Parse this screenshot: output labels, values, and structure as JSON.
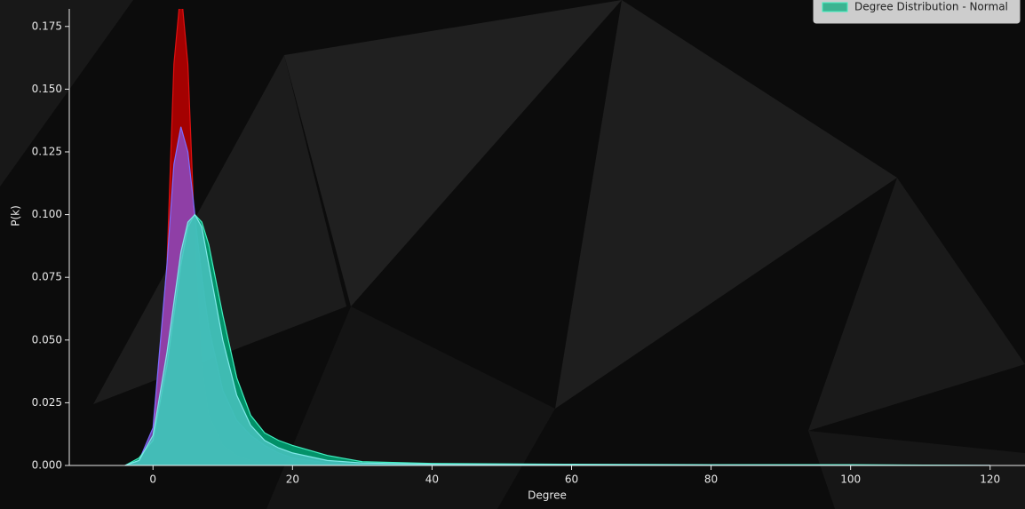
{
  "chart_data": {
    "type": "area",
    "x_label": "Degree",
    "y_label": "P(k)",
    "x": [
      -4,
      -2,
      0,
      2,
      3,
      4,
      5,
      6,
      7,
      8,
      10,
      12,
      14,
      16,
      18,
      20,
      25,
      30,
      40,
      60,
      80,
      100,
      120
    ],
    "series": [
      {
        "color": "#c00000",
        "values": [
          0,
          0.001,
          0.01,
          0.08,
          0.16,
          0.19,
          0.16,
          0.09,
          0.04,
          0.02,
          0.008,
          0.004,
          0.002,
          0.001,
          0.0005,
          0.0003,
          0.0001,
          0,
          0,
          0,
          0,
          0,
          0
        ]
      },
      {
        "color": "#8a4fd0",
        "values": [
          0,
          0.002,
          0.015,
          0.08,
          0.12,
          0.135,
          0.125,
          0.1,
          0.075,
          0.055,
          0.03,
          0.018,
          0.012,
          0.008,
          0.005,
          0.003,
          0.001,
          0.0005,
          0.0002,
          0.0002,
          0.0001,
          0,
          0
        ]
      },
      {
        "name": "Degree Distribution - Normal",
        "color": "#00a878",
        "values": [
          0,
          0.003,
          0.01,
          0.04,
          0.06,
          0.08,
          0.095,
          0.1,
          0.097,
          0.088,
          0.06,
          0.035,
          0.02,
          0.013,
          0.01,
          0.008,
          0.004,
          0.0015,
          0.0008,
          0.0005,
          0.0003,
          0.0003,
          0
        ]
      },
      {
        "color": "#4fc6c6",
        "values": [
          0,
          0.002,
          0.012,
          0.045,
          0.065,
          0.085,
          0.097,
          0.1,
          0.095,
          0.08,
          0.05,
          0.028,
          0.016,
          0.01,
          0.007,
          0.005,
          0.002,
          0.001,
          0.0005,
          0.0003,
          0.0002,
          0.0001,
          0
        ]
      }
    ],
    "xlim": [
      -12,
      125
    ],
    "ylim": [
      0,
      0.182
    ],
    "xticks": [
      0,
      20,
      40,
      60,
      80,
      100,
      120
    ],
    "yticks": [
      {
        "value": 0,
        "label": "0.000"
      },
      {
        "value": 0.025,
        "label": "0.025"
      },
      {
        "value": 0.05,
        "label": "0.050"
      },
      {
        "value": 0.075,
        "label": "0.075"
      },
      {
        "value": 0.1,
        "label": "0.100"
      },
      {
        "value": 0.125,
        "label": "0.125"
      },
      {
        "value": 0.15,
        "label": "0.150"
      },
      {
        "value": 0.175,
        "label": "0.175"
      }
    ],
    "legend": "upper right"
  }
}
